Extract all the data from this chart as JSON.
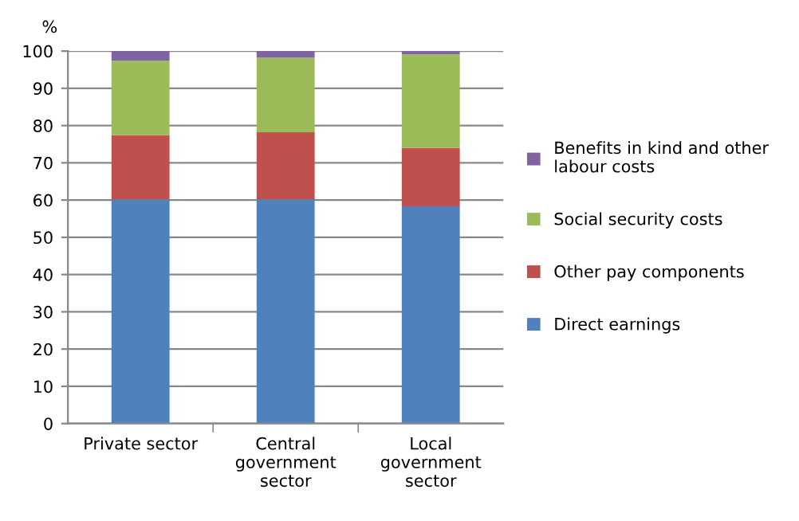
{
  "chart_data": {
    "type": "bar",
    "stacked": true,
    "ylabel": "%",
    "categories": [
      "Private sector",
      "Central\ngovernment\nsector",
      "Local\ngovernment\nsector"
    ],
    "series": [
      {
        "name": "Direct earnings",
        "color": "#4f81bd",
        "values": [
          60.2,
          60.2,
          58.3
        ]
      },
      {
        "name": "Other pay components",
        "color": "#c0504d",
        "values": [
          17.2,
          18.0,
          15.7
        ]
      },
      {
        "name": "Social security costs",
        "color": "#9bbb59",
        "values": [
          20.0,
          20.0,
          25.1
        ]
      },
      {
        "name": "Benefits in kind and other\nlabour costs",
        "color": "#8064a2",
        "values": [
          2.6,
          1.8,
          0.9
        ]
      }
    ],
    "ylim": [
      0,
      100
    ],
    "yticks": [
      0,
      10,
      20,
      30,
      40,
      50,
      60,
      70,
      80,
      90,
      100
    ],
    "grid": "y",
    "legend": "right"
  }
}
